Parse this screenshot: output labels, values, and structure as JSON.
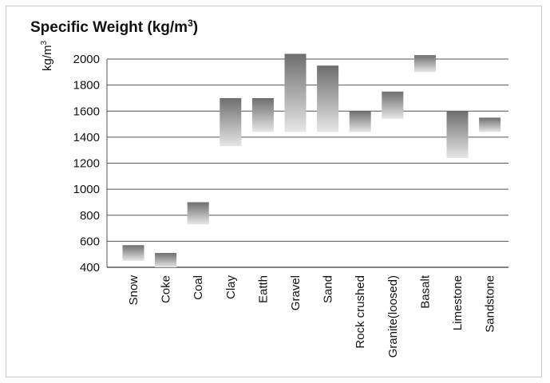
{
  "chart_data": {
    "type": "bar",
    "title_main": "Specific Weight (kg/m",
    "title_sup": "3",
    "title_end": ")",
    "ylabel_main": "kg/m",
    "ylabel_sup": "3",
    "xlabel": "",
    "ylim": [
      400,
      2000
    ],
    "yticks": [
      400,
      600,
      800,
      1000,
      1200,
      1400,
      1600,
      1800,
      2000
    ],
    "grid": true,
    "categories": [
      "Snow",
      "Coke",
      "Coal",
      "Clay",
      "Eatth",
      "Gravel",
      "Sand",
      "Rock crushed",
      "Granite(loosed)",
      "Basalt",
      "Limestone",
      "Sandstone"
    ],
    "ranges": [
      [
        450,
        570
      ],
      [
        400,
        510
      ],
      [
        730,
        900
      ],
      [
        1330,
        1700
      ],
      [
        1440,
        1700
      ],
      [
        1440,
        2040
      ],
      [
        1440,
        1950
      ],
      [
        1440,
        1600
      ],
      [
        1540,
        1750
      ],
      [
        1900,
        2030
      ],
      [
        1240,
        1600
      ],
      [
        1440,
        1550
      ]
    ],
    "bar_color_top": "#6e6e6e",
    "bar_color_bottom": "#e6e6e6",
    "grid_color": "#555555"
  }
}
